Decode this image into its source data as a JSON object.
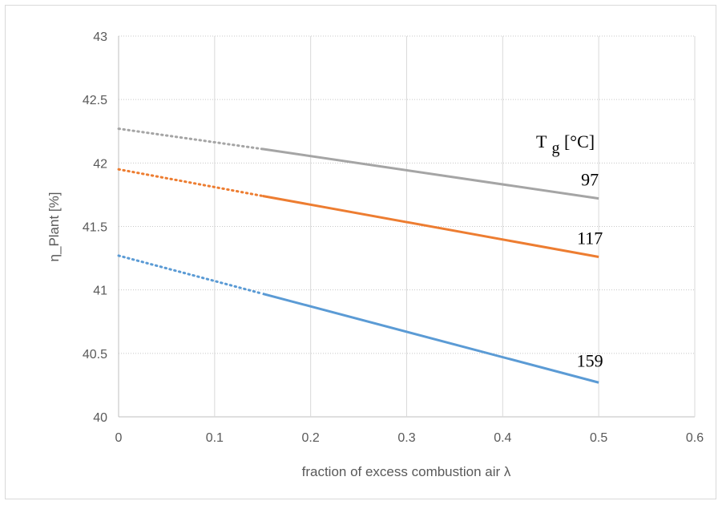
{
  "chart_data": {
    "type": "line",
    "xlabel": "fraction of excess combustion air λ",
    "ylabel": "η_Plant [%]",
    "xlim": [
      0,
      0.6
    ],
    "ylim": [
      40,
      43
    ],
    "xticks": [
      "0",
      "0.1",
      "0.2",
      "0.3",
      "0.4",
      "0.5",
      "0.6"
    ],
    "yticks": [
      "40",
      "40.5",
      "41",
      "41.5",
      "42",
      "42.5",
      "43"
    ],
    "grid": true,
    "legend_title": {
      "main": "T",
      "sub": "g",
      "unit": " [°C]"
    },
    "series": [
      {
        "name": "97",
        "color": "#a5a5a5",
        "extrapolated": {
          "x": [
            0,
            0.15
          ],
          "y": [
            42.27,
            42.11
          ]
        },
        "solid": {
          "x": [
            0.15,
            0.5
          ],
          "y": [
            42.11,
            41.72
          ]
        }
      },
      {
        "name": "117",
        "color": "#ed7d31",
        "extrapolated": {
          "x": [
            0,
            0.15
          ],
          "y": [
            41.95,
            41.74
          ]
        },
        "solid": {
          "x": [
            0.15,
            0.5
          ],
          "y": [
            41.74,
            41.26
          ]
        }
      },
      {
        "name": "159",
        "color": "#5b9bd5",
        "extrapolated": {
          "x": [
            0,
            0.15
          ],
          "y": [
            41.27,
            40.97
          ]
        },
        "solid": {
          "x": [
            0.15,
            0.5
          ],
          "y": [
            40.97,
            40.27
          ]
        }
      }
    ]
  }
}
